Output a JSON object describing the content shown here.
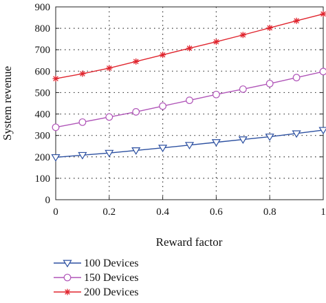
{
  "chart_data": {
    "type": "line",
    "xlabel": "Reward factor",
    "ylabel": "System revenue",
    "xlim": [
      0,
      1
    ],
    "ylim": [
      0,
      900
    ],
    "x_ticks": [
      0,
      0.2,
      0.4,
      0.6,
      0.8,
      1
    ],
    "y_ticks": [
      0,
      100,
      200,
      300,
      400,
      500,
      600,
      700,
      800,
      900
    ],
    "x_tick_labels": [
      "0",
      "0.2",
      "0.4",
      "0.6",
      "0.8",
      "1"
    ],
    "y_tick_labels": [
      "0",
      "100",
      "200",
      "300",
      "400",
      "500",
      "600",
      "700",
      "800",
      "900"
    ],
    "grid": "dotted",
    "legend_position": "below-left",
    "x": [
      0,
      0.1,
      0.2,
      0.3,
      0.4,
      0.5,
      0.6,
      0.7,
      0.8,
      0.9,
      1.0
    ],
    "series": [
      {
        "name": "100 Devices",
        "color": "#2b4fa0",
        "marker": "triangle-down",
        "values": [
          198,
          208,
          218,
          230,
          242,
          255,
          268,
          281,
          294,
          309,
          325
        ]
      },
      {
        "name": "150 Devices",
        "color": "#b055b8",
        "marker": "circle",
        "values": [
          338,
          362,
          386,
          410,
          437,
          464,
          491,
          516,
          542,
          570,
          598
        ]
      },
      {
        "name": "200 Devices",
        "color": "#e0242d",
        "marker": "star",
        "values": [
          565,
          588,
          614,
          645,
          676,
          707,
          737,
          769,
          802,
          835,
          867
        ]
      }
    ]
  }
}
